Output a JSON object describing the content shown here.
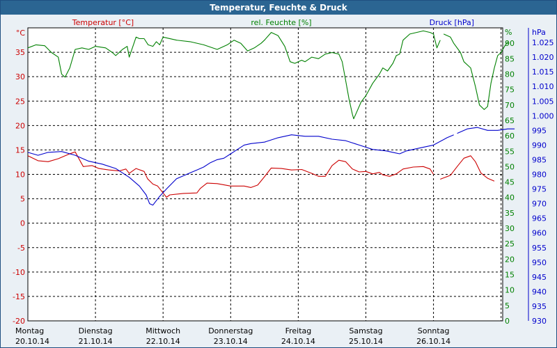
{
  "window": {
    "title": "Temperatur, Feuchte & Druck"
  },
  "colors": {
    "temperature": "#cc0000",
    "humidity": "#008000",
    "pressure": "#0000cc",
    "grid": "#000000",
    "plot_bg": "#ffffff"
  },
  "chart_data": {
    "type": "line",
    "title": "Temperatur, Feuchte & Druck",
    "x_range": [
      0,
      7
    ],
    "x_tick_labels": [
      {
        "day": "Montag",
        "date": "20.10.14"
      },
      {
        "day": "Dienstag",
        "date": "21.10.14"
      },
      {
        "day": "Mittwoch",
        "date": "22.10.14"
      },
      {
        "day": "Donnerstag",
        "date": "23.10.14"
      },
      {
        "day": "Freitag",
        "date": "24.10.14"
      },
      {
        "day": "Samstag",
        "date": "25.10.14"
      },
      {
        "day": "Sonntag",
        "date": "26.10.14"
      }
    ],
    "axes": {
      "temperature": {
        "label": "Temperatur [°C]",
        "unit": "°C",
        "range": [
          -20,
          40
        ],
        "ticks": [
          35,
          30,
          25,
          20,
          15,
          10,
          5,
          0,
          -5,
          -10,
          -15,
          -20
        ]
      },
      "humidity": {
        "label": "rel. Feuchte [%]",
        "unit": "%",
        "range": [
          0,
          95
        ],
        "ticks": [
          90,
          85,
          80,
          75,
          70,
          65,
          60,
          55,
          50,
          45,
          40,
          35,
          30,
          25,
          20,
          15,
          10,
          5,
          0
        ]
      },
      "pressure": {
        "label": "Druck [hPa]",
        "unit": "hPa",
        "range": [
          930,
          1030
        ],
        "ticks": [
          "1.025",
          "1.020",
          "1.015",
          "1.010",
          "1.005",
          "1.000",
          "995",
          "990",
          "985",
          "980",
          "975",
          "970",
          "965",
          "960",
          "955",
          "950",
          "945",
          "940",
          "935",
          "930"
        ]
      }
    },
    "series": [
      {
        "name": "Temperatur [°C]",
        "axis": "temperature",
        "segments": [
          [
            [
              0,
              13.8
            ],
            [
              0.15,
              12.8
            ],
            [
              0.3,
              12.6
            ],
            [
              0.45,
              13.2
            ],
            [
              0.6,
              14.1
            ],
            [
              0.7,
              14.6
            ],
            [
              0.78,
              12.6
            ],
            [
              0.82,
              11.6
            ],
            [
              0.95,
              11.8
            ],
            [
              1.05,
              11.2
            ],
            [
              1.2,
              10.9
            ],
            [
              1.35,
              10.7
            ],
            [
              1.45,
              11.1
            ],
            [
              1.5,
              10.2
            ],
            [
              1.6,
              11.2
            ],
            [
              1.72,
              10.6
            ],
            [
              1.77,
              9.1
            ],
            [
              1.85,
              8.0
            ],
            [
              1.92,
              7.6
            ],
            [
              2.0,
              6.2
            ],
            [
              2.05,
              5.3
            ],
            [
              2.1,
              5.8
            ],
            [
              2.3,
              6.1
            ],
            [
              2.5,
              6.2
            ],
            [
              2.55,
              7.1
            ],
            [
              2.65,
              8.2
            ],
            [
              2.8,
              8.1
            ],
            [
              3.0,
              7.6
            ],
            [
              3.2,
              7.6
            ],
            [
              3.3,
              7.3
            ],
            [
              3.4,
              7.8
            ],
            [
              3.5,
              9.5
            ],
            [
              3.6,
              11.3
            ],
            [
              3.75,
              11.2
            ],
            [
              3.9,
              10.9
            ],
            [
              4.05,
              11.0
            ],
            [
              4.2,
              10.2
            ],
            [
              4.3,
              9.6
            ],
            [
              4.4,
              9.6
            ],
            [
              4.5,
              11.8
            ],
            [
              4.6,
              12.9
            ],
            [
              4.7,
              12.6
            ],
            [
              4.8,
              11.1
            ],
            [
              4.9,
              10.5
            ],
            [
              5.0,
              10.6
            ],
            [
              5.1,
              10.1
            ],
            [
              5.2,
              10.4
            ],
            [
              5.25,
              9.9
            ],
            [
              5.35,
              9.6
            ],
            [
              5.45,
              10.1
            ],
            [
              5.55,
              11.1
            ],
            [
              5.7,
              11.5
            ],
            [
              5.85,
              11.6
            ],
            [
              5.95,
              11.1
            ],
            [
              6.0,
              10.0
            ]
          ],
          [
            [
              6.1,
              9.0
            ],
            [
              6.25,
              9.8
            ],
            [
              6.35,
              11.6
            ],
            [
              6.45,
              13.3
            ],
            [
              6.55,
              13.8
            ],
            [
              6.62,
              12.6
            ],
            [
              6.7,
              10.3
            ],
            [
              6.8,
              9.2
            ],
            [
              6.9,
              8.6
            ]
          ]
        ]
      },
      {
        "name": "rel. Feuchte [%]",
        "axis": "humidity",
        "segments": [
          [
            [
              0,
              88.5
            ],
            [
              0.12,
              89.5
            ],
            [
              0.25,
              89.2
            ],
            [
              0.35,
              87.0
            ],
            [
              0.45,
              85.5
            ],
            [
              0.5,
              80
            ],
            [
              0.55,
              79
            ],
            [
              0.62,
              82
            ],
            [
              0.7,
              88
            ],
            [
              0.8,
              88.5
            ],
            [
              0.9,
              88
            ],
            [
              1.0,
              89
            ],
            [
              1.15,
              88.5
            ],
            [
              1.25,
              87
            ],
            [
              1.3,
              86
            ],
            [
              1.4,
              88
            ],
            [
              1.47,
              89
            ],
            [
              1.5,
              85.5
            ],
            [
              1.57,
              90
            ],
            [
              1.6,
              92
            ],
            [
              1.65,
              91.5
            ],
            [
              1.72,
              91.5
            ],
            [
              1.78,
              89.5
            ],
            [
              1.85,
              89
            ],
            [
              1.9,
              90.5
            ],
            [
              1.95,
              89.5
            ],
            [
              2.0,
              92
            ],
            [
              2.2,
              91
            ],
            [
              2.4,
              90.5
            ],
            [
              2.6,
              89.5
            ],
            [
              2.8,
              88
            ],
            [
              2.95,
              89.5
            ],
            [
              3.05,
              91
            ],
            [
              3.15,
              90
            ],
            [
              3.25,
              87.5
            ],
            [
              3.35,
              88.5
            ],
            [
              3.45,
              90
            ],
            [
              3.5,
              91
            ],
            [
              3.6,
              93.5
            ],
            [
              3.7,
              92.5
            ],
            [
              3.8,
              89
            ],
            [
              3.88,
              84
            ],
            [
              3.95,
              83.5
            ],
            [
              4.05,
              84.5
            ],
            [
              4.1,
              84
            ],
            [
              4.2,
              85.5
            ],
            [
              4.3,
              85
            ],
            [
              4.4,
              86.5
            ],
            [
              4.5,
              87
            ],
            [
              4.6,
              86.5
            ],
            [
              4.65,
              84
            ],
            [
              4.7,
              78
            ],
            [
              4.75,
              72
            ],
            [
              4.8,
              67
            ],
            [
              4.82,
              65.5
            ],
            [
              4.87,
              68
            ],
            [
              4.93,
              71
            ],
            [
              5.0,
              73
            ],
            [
              5.1,
              77
            ],
            [
              5.2,
              80
            ],
            [
              5.25,
              82
            ],
            [
              5.32,
              81
            ],
            [
              5.4,
              83.5
            ],
            [
              5.45,
              86
            ],
            [
              5.5,
              86.5
            ],
            [
              5.55,
              91
            ],
            [
              5.65,
              93
            ],
            [
              5.75,
              93.5
            ],
            [
              5.85,
              94
            ],
            [
              5.95,
              93.5
            ],
            [
              6.0,
              93
            ],
            [
              6.05,
              88.5
            ],
            [
              6.1,
              91
            ]
          ],
          [
            [
              6.15,
              93
            ],
            [
              6.25,
              92
            ],
            [
              6.3,
              90
            ],
            [
              6.4,
              87
            ],
            [
              6.45,
              84
            ],
            [
              6.55,
              82
            ],
            [
              6.62,
              76
            ],
            [
              6.68,
              70
            ],
            [
              6.75,
              68.5
            ],
            [
              6.8,
              69.5
            ],
            [
              6.85,
              77
            ],
            [
              6.9,
              82
            ],
            [
              6.95,
              86
            ],
            [
              7.0,
              87
            ],
            [
              7.05,
              89
            ],
            [
              7.1,
              90.5
            ]
          ]
        ]
      },
      {
        "name": "Druck [hPa]",
        "axis": "pressure",
        "segments": [
          [
            [
              0,
              987.5
            ],
            [
              0.15,
              986.5
            ],
            [
              0.3,
              987.5
            ],
            [
              0.5,
              987.8
            ],
            [
              0.7,
              986.5
            ],
            [
              0.9,
              984.5
            ],
            [
              1.1,
              983.5
            ],
            [
              1.3,
              982
            ],
            [
              1.5,
              979
            ],
            [
              1.65,
              976
            ],
            [
              1.75,
              973
            ],
            [
              1.8,
              970
            ],
            [
              1.85,
              969.5
            ],
            [
              1.95,
              972.5
            ],
            [
              2.05,
              975
            ],
            [
              2.2,
              978.5
            ],
            [
              2.4,
              980.5
            ],
            [
              2.5,
              981.5
            ],
            [
              2.6,
              982.5
            ],
            [
              2.7,
              984
            ],
            [
              2.8,
              985
            ],
            [
              2.9,
              985.5
            ],
            [
              3.0,
              987
            ],
            [
              3.1,
              988.5
            ],
            [
              3.2,
              990
            ],
            [
              3.3,
              990.5
            ],
            [
              3.5,
              991
            ],
            [
              3.7,
              992.5
            ],
            [
              3.9,
              993.5
            ],
            [
              4.1,
              993
            ],
            [
              4.3,
              993
            ],
            [
              4.5,
              992
            ],
            [
              4.7,
              991.5
            ],
            [
              4.9,
              990
            ],
            [
              5.1,
              988.5
            ],
            [
              5.3,
              988
            ],
            [
              5.4,
              987.5
            ],
            [
              5.5,
              987
            ],
            [
              5.6,
              988
            ],
            [
              5.8,
              989
            ],
            [
              6.0,
              990
            ],
            [
              6.2,
              992.5
            ],
            [
              6.3,
              993.5
            ]
          ],
          [
            [
              6.35,
              994
            ],
            [
              6.5,
              995.5
            ],
            [
              6.65,
              996
            ],
            [
              6.8,
              995
            ],
            [
              6.95,
              995
            ],
            [
              7.1,
              995.5
            ],
            [
              7.2,
              995.5
            ]
          ]
        ]
      }
    ]
  }
}
